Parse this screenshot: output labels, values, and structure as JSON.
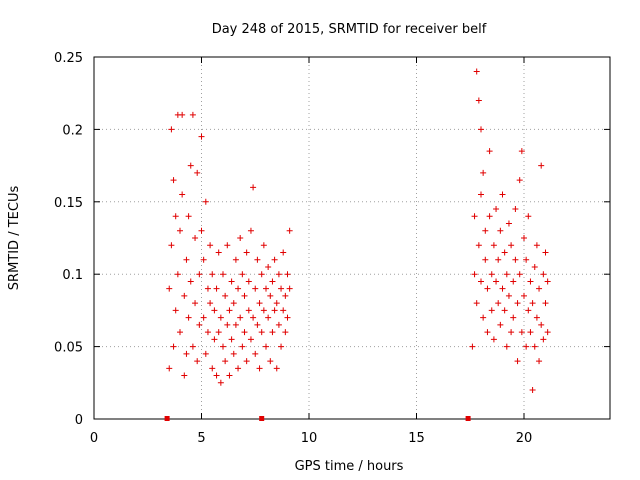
{
  "chart_data": {
    "type": "scatter",
    "title": "Day 248 of 2015, SRMTID for receiver belf",
    "xlabel": "GPS time / hours",
    "ylabel": "SRMTID / TECUs",
    "xlim": [
      0,
      24
    ],
    "ylim": [
      0,
      0.25
    ],
    "xticks": [
      0,
      5,
      10,
      15,
      20
    ],
    "xtick_labels": [
      "0",
      "5",
      "10",
      "15",
      "20"
    ],
    "yticks": [
      0,
      0.05,
      0.1,
      0.15,
      0.2,
      0.25
    ],
    "ytick_labels": [
      "0",
      "0.05",
      "0.1",
      "0.15",
      "0.2",
      "0.25"
    ],
    "grid": true,
    "marker": "+",
    "color": "#e00000",
    "baseline_markers_x": [
      3.4,
      7.8,
      17.4
    ],
    "series": [
      {
        "name": "SRMTID",
        "clusters_note": "points clustered 3.4-9.2 h and 17.4-21.2 h",
        "points": [
          [
            3.5,
            0.035
          ],
          [
            3.5,
            0.09
          ],
          [
            3.6,
            0.12
          ],
          [
            3.6,
            0.2
          ],
          [
            3.7,
            0.165
          ],
          [
            3.7,
            0.05
          ],
          [
            3.8,
            0.14
          ],
          [
            3.8,
            0.075
          ],
          [
            3.9,
            0.21
          ],
          [
            3.9,
            0.1
          ],
          [
            4.0,
            0.13
          ],
          [
            4.0,
            0.06
          ],
          [
            4.1,
            0.21
          ],
          [
            4.1,
            0.155
          ],
          [
            4.2,
            0.03
          ],
          [
            4.2,
            0.085
          ],
          [
            4.3,
            0.11
          ],
          [
            4.3,
            0.045
          ],
          [
            4.4,
            0.14
          ],
          [
            4.4,
            0.07
          ],
          [
            4.5,
            0.175
          ],
          [
            4.5,
            0.095
          ],
          [
            4.6,
            0.21
          ],
          [
            4.6,
            0.05
          ],
          [
            4.7,
            0.125
          ],
          [
            4.7,
            0.08
          ],
          [
            4.8,
            0.17
          ],
          [
            4.8,
            0.04
          ],
          [
            4.9,
            0.1
          ],
          [
            4.9,
            0.065
          ],
          [
            5.0,
            0.195
          ],
          [
            5.0,
            0.13
          ],
          [
            5.1,
            0.07
          ],
          [
            5.1,
            0.11
          ],
          [
            5.2,
            0.15
          ],
          [
            5.2,
            0.045
          ],
          [
            5.3,
            0.09
          ],
          [
            5.3,
            0.06
          ],
          [
            5.4,
            0.12
          ],
          [
            5.4,
            0.08
          ],
          [
            5.5,
            0.035
          ],
          [
            5.5,
            0.1
          ],
          [
            5.6,
            0.055
          ],
          [
            5.6,
            0.075
          ],
          [
            5.7,
            0.03
          ],
          [
            5.7,
            0.09
          ],
          [
            5.8,
            0.06
          ],
          [
            5.8,
            0.115
          ],
          [
            5.9,
            0.025
          ],
          [
            5.9,
            0.07
          ],
          [
            6.0,
            0.05
          ],
          [
            6.0,
            0.1
          ],
          [
            6.1,
            0.085
          ],
          [
            6.1,
            0.04
          ],
          [
            6.2,
            0.065
          ],
          [
            6.2,
            0.12
          ],
          [
            6.3,
            0.03
          ],
          [
            6.3,
            0.075
          ],
          [
            6.4,
            0.095
          ],
          [
            6.4,
            0.055
          ],
          [
            6.5,
            0.08
          ],
          [
            6.5,
            0.045
          ],
          [
            6.6,
            0.11
          ],
          [
            6.6,
            0.065
          ],
          [
            6.7,
            0.035
          ],
          [
            6.7,
            0.09
          ],
          [
            6.8,
            0.07
          ],
          [
            6.8,
            0.125
          ],
          [
            6.9,
            0.05
          ],
          [
            6.9,
            0.1
          ],
          [
            7.0,
            0.085
          ],
          [
            7.0,
            0.06
          ],
          [
            7.1,
            0.04
          ],
          [
            7.1,
            0.115
          ],
          [
            7.2,
            0.075
          ],
          [
            7.2,
            0.095
          ],
          [
            7.3,
            0.13
          ],
          [
            7.3,
            0.055
          ],
          [
            7.4,
            0.16
          ],
          [
            7.4,
            0.07
          ],
          [
            7.5,
            0.09
          ],
          [
            7.5,
            0.045
          ],
          [
            7.6,
            0.11
          ],
          [
            7.6,
            0.065
          ],
          [
            7.7,
            0.08
          ],
          [
            7.7,
            0.035
          ],
          [
            7.8,
            0.1
          ],
          [
            7.8,
            0.06
          ],
          [
            7.9,
            0.075
          ],
          [
            7.9,
            0.12
          ],
          [
            8.0,
            0.05
          ],
          [
            8.0,
            0.09
          ],
          [
            8.1,
            0.07
          ],
          [
            8.1,
            0.105
          ],
          [
            8.2,
            0.04
          ],
          [
            8.2,
            0.085
          ],
          [
            8.3,
            0.06
          ],
          [
            8.3,
            0.095
          ],
          [
            8.4,
            0.075
          ],
          [
            8.4,
            0.11
          ],
          [
            8.5,
            0.035
          ],
          [
            8.5,
            0.08
          ],
          [
            8.6,
            0.065
          ],
          [
            8.6,
            0.1
          ],
          [
            8.7,
            0.05
          ],
          [
            8.7,
            0.09
          ],
          [
            8.8,
            0.075
          ],
          [
            8.8,
            0.115
          ],
          [
            8.9,
            0.06
          ],
          [
            8.9,
            0.085
          ],
          [
            9.0,
            0.1
          ],
          [
            9.0,
            0.07
          ],
          [
            9.1,
            0.13
          ],
          [
            9.1,
            0.09
          ],
          [
            17.6,
            0.05
          ],
          [
            17.7,
            0.1
          ],
          [
            17.7,
            0.14
          ],
          [
            17.8,
            0.24
          ],
          [
            17.8,
            0.08
          ],
          [
            17.9,
            0.22
          ],
          [
            17.9,
            0.12
          ],
          [
            18.0,
            0.2
          ],
          [
            18.0,
            0.155
          ],
          [
            18.0,
            0.095
          ],
          [
            18.1,
            0.17
          ],
          [
            18.1,
            0.07
          ],
          [
            18.2,
            0.11
          ],
          [
            18.2,
            0.13
          ],
          [
            18.3,
            0.09
          ],
          [
            18.3,
            0.06
          ],
          [
            18.4,
            0.185
          ],
          [
            18.4,
            0.14
          ],
          [
            18.5,
            0.1
          ],
          [
            18.5,
            0.075
          ],
          [
            18.6,
            0.12
          ],
          [
            18.6,
            0.055
          ],
          [
            18.7,
            0.095
          ],
          [
            18.7,
            0.145
          ],
          [
            18.8,
            0.08
          ],
          [
            18.8,
            0.11
          ],
          [
            18.9,
            0.065
          ],
          [
            18.9,
            0.13
          ],
          [
            19.0,
            0.09
          ],
          [
            19.0,
            0.155
          ],
          [
            19.1,
            0.075
          ],
          [
            19.1,
            0.115
          ],
          [
            19.2,
            0.05
          ],
          [
            19.2,
            0.1
          ],
          [
            19.3,
            0.135
          ],
          [
            19.3,
            0.085
          ],
          [
            19.4,
            0.06
          ],
          [
            19.4,
            0.12
          ],
          [
            19.5,
            0.095
          ],
          [
            19.5,
            0.07
          ],
          [
            19.6,
            0.145
          ],
          [
            19.6,
            0.11
          ],
          [
            19.7,
            0.04
          ],
          [
            19.7,
            0.08
          ],
          [
            19.8,
            0.165
          ],
          [
            19.8,
            0.1
          ],
          [
            19.9,
            0.185
          ],
          [
            19.9,
            0.06
          ],
          [
            20.0,
            0.125
          ],
          [
            20.0,
            0.085
          ],
          [
            20.1,
            0.05
          ],
          [
            20.1,
            0.11
          ],
          [
            20.2,
            0.14
          ],
          [
            20.2,
            0.075
          ],
          [
            20.3,
            0.095
          ],
          [
            20.3,
            0.06
          ],
          [
            20.4,
            0.02
          ],
          [
            20.4,
            0.08
          ],
          [
            20.5,
            0.105
          ],
          [
            20.5,
            0.05
          ],
          [
            20.6,
            0.07
          ],
          [
            20.6,
            0.12
          ],
          [
            20.7,
            0.04
          ],
          [
            20.7,
            0.09
          ],
          [
            20.8,
            0.175
          ],
          [
            20.8,
            0.065
          ],
          [
            20.9,
            0.1
          ],
          [
            20.9,
            0.055
          ],
          [
            21.0,
            0.08
          ],
          [
            21.0,
            0.115
          ],
          [
            21.1,
            0.06
          ],
          [
            21.1,
            0.095
          ]
        ]
      }
    ]
  }
}
